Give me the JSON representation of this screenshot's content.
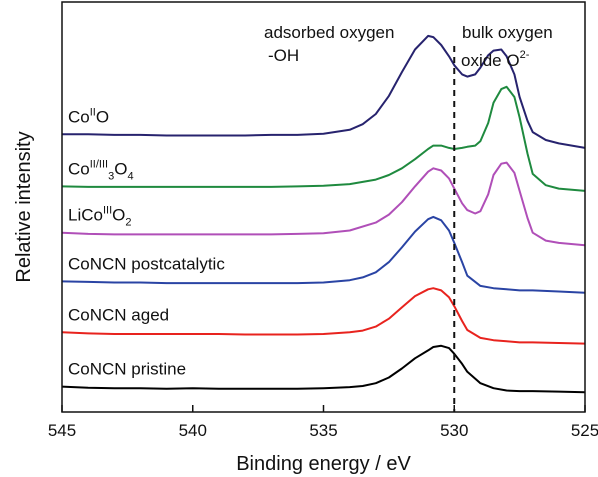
{
  "chart_data": {
    "type": "line",
    "xlabel": "Binding energy / eV",
    "ylabel": "Relative intensity",
    "x_reversed": true,
    "xlim": [
      545,
      525
    ],
    "x_ticks": [
      545,
      540,
      535,
      530,
      525
    ],
    "y_ticks_shown": false,
    "grid": false,
    "legend": "inline labels on left",
    "annotations": [
      {
        "line1": "adsorbed oxygen",
        "line2": "-OH"
      },
      {
        "line1": "bulk oxygen",
        "line2_pre": "oxide O",
        "line2_sup": "2-"
      }
    ],
    "reference_line": {
      "x": 530.0,
      "style": "dashed"
    },
    "series": [
      {
        "name": "CoNCN pristine",
        "label_parts": [
          {
            "t": "CoNCN pristine"
          }
        ],
        "color": "#000000",
        "x": [
          545,
          544,
          543,
          542,
          541,
          540,
          539,
          538,
          537,
          536,
          535,
          534,
          533.5,
          533,
          532.5,
          532,
          531.5,
          531,
          530.8,
          530.5,
          530.2,
          530,
          529.7,
          529.5,
          529,
          528.5,
          528,
          527.5,
          527,
          526,
          525
        ],
        "y": [
          0.1,
          0.08,
          0.07,
          0.07,
          0.06,
          0.07,
          0.06,
          0.06,
          0.06,
          0.06,
          0.07,
          0.09,
          0.11,
          0.16,
          0.26,
          0.42,
          0.6,
          0.74,
          0.8,
          0.82,
          0.78,
          0.68,
          0.5,
          0.36,
          0.16,
          0.07,
          0.03,
          0.02,
          0.02,
          0.01,
          0.0
        ]
      },
      {
        "name": "CoNCN aged",
        "label_parts": [
          {
            "t": "CoNCN aged"
          }
        ],
        "color": "#e8231e",
        "x": [
          545,
          544,
          543,
          542,
          541,
          540,
          539,
          538,
          537,
          536,
          535,
          534,
          533.5,
          533,
          532.5,
          532,
          531.5,
          531,
          530.8,
          530.5,
          530.2,
          530,
          529.7,
          529.5,
          529,
          528.5,
          528,
          527.5,
          527,
          526,
          525
        ],
        "y": [
          1.06,
          1.04,
          1.03,
          1.03,
          1.03,
          1.03,
          1.03,
          1.02,
          1.02,
          1.02,
          1.03,
          1.06,
          1.09,
          1.16,
          1.3,
          1.5,
          1.7,
          1.82,
          1.84,
          1.8,
          1.68,
          1.52,
          1.26,
          1.1,
          0.96,
          0.92,
          0.9,
          0.88,
          0.88,
          0.87,
          0.86
        ]
      },
      {
        "name": "CoNCN postcatalytic",
        "label_parts": [
          {
            "t": "CoNCN postcatalytic"
          }
        ],
        "color": "#2a44a4",
        "x": [
          545,
          544,
          543,
          542,
          541,
          540,
          539,
          538,
          537,
          536,
          535,
          534,
          533.5,
          533,
          532.5,
          532,
          531.5,
          531,
          530.8,
          530.5,
          530.2,
          530,
          529.7,
          529.5,
          529,
          528.5,
          528,
          527.5,
          527,
          526,
          525
        ],
        "y": [
          1.96,
          1.95,
          1.94,
          1.94,
          1.93,
          1.93,
          1.93,
          1.93,
          1.93,
          1.93,
          1.94,
          1.98,
          2.03,
          2.12,
          2.3,
          2.56,
          2.84,
          3.06,
          3.1,
          3.04,
          2.86,
          2.64,
          2.3,
          2.06,
          1.88,
          1.84,
          1.82,
          1.8,
          1.8,
          1.78,
          1.76
        ]
      },
      {
        "name": "LiCoIIIO2",
        "label_parts": [
          {
            "t": "LiCo"
          },
          {
            "t": "III",
            "sup": true
          },
          {
            "t": "O"
          },
          {
            "t": "2",
            "sub": true
          }
        ],
        "color": "#b04fb8",
        "x": [
          545,
          544,
          543,
          542,
          541,
          540,
          539,
          538,
          537,
          536,
          535,
          534,
          533,
          532.5,
          532,
          531.5,
          531,
          530.8,
          530.5,
          530.2,
          530,
          529.7,
          529.5,
          529.2,
          529,
          528.7,
          528.5,
          528.2,
          528,
          527.7,
          527.5,
          527.2,
          527,
          526.5,
          526,
          525
        ],
        "y": [
          2.82,
          2.8,
          2.79,
          2.79,
          2.79,
          2.79,
          2.79,
          2.79,
          2.79,
          2.8,
          2.81,
          2.86,
          3.0,
          3.14,
          3.36,
          3.64,
          3.9,
          3.96,
          3.92,
          3.78,
          3.6,
          3.34,
          3.22,
          3.16,
          3.2,
          3.5,
          3.84,
          4.04,
          4.06,
          3.88,
          3.56,
          3.08,
          2.82,
          2.68,
          2.64,
          2.6
        ]
      },
      {
        "name": "CoII/III3O4",
        "label_parts": [
          {
            "t": "Co"
          },
          {
            "t": "II/III",
            "sup": true
          },
          {
            "t": "3",
            "sub": true
          },
          {
            "t": "O"
          },
          {
            "t": "4",
            "sub": true
          }
        ],
        "color": "#1f8a3f",
        "x": [
          545,
          544,
          543,
          542,
          541,
          540,
          539,
          538,
          537,
          536,
          535,
          534,
          533,
          532.5,
          532,
          531.5,
          531,
          530.8,
          530.5,
          530.2,
          530,
          529.7,
          529.5,
          529.2,
          529,
          528.7,
          528.5,
          528.2,
          528,
          527.7,
          527.5,
          527.2,
          527,
          526.5,
          526,
          525
        ],
        "y": [
          3.64,
          3.63,
          3.63,
          3.63,
          3.63,
          3.63,
          3.63,
          3.63,
          3.63,
          3.64,
          3.65,
          3.68,
          3.76,
          3.84,
          3.96,
          4.12,
          4.3,
          4.36,
          4.36,
          4.32,
          4.3,
          4.32,
          4.34,
          4.36,
          4.44,
          4.76,
          5.12,
          5.36,
          5.4,
          5.22,
          4.86,
          4.22,
          3.86,
          3.66,
          3.6,
          3.56
        ]
      },
      {
        "name": "CoIIO",
        "label_parts": [
          {
            "t": "Co"
          },
          {
            "t": "II",
            "sup": true
          },
          {
            "t": "O"
          }
        ],
        "color": "#27236e",
        "x": [
          545,
          544,
          543,
          542,
          541,
          540,
          539,
          538,
          537,
          536,
          535,
          534,
          533.5,
          533,
          532.5,
          532,
          531.5,
          531,
          530.8,
          530.5,
          530.2,
          530,
          529.7,
          529.5,
          529.2,
          529,
          528.7,
          528.5,
          528.2,
          528,
          527.7,
          527.5,
          527.2,
          527,
          526.5,
          526,
          525
        ],
        "y": [
          4.56,
          4.56,
          4.55,
          4.55,
          4.54,
          4.54,
          4.54,
          4.54,
          4.55,
          4.55,
          4.57,
          4.64,
          4.74,
          4.92,
          5.24,
          5.66,
          6.06,
          6.3,
          6.28,
          6.14,
          5.94,
          5.78,
          5.62,
          5.58,
          5.62,
          5.74,
          5.96,
          6.04,
          6.06,
          5.94,
          5.62,
          5.22,
          4.8,
          4.6,
          4.46,
          4.4,
          4.32
        ]
      }
    ]
  }
}
